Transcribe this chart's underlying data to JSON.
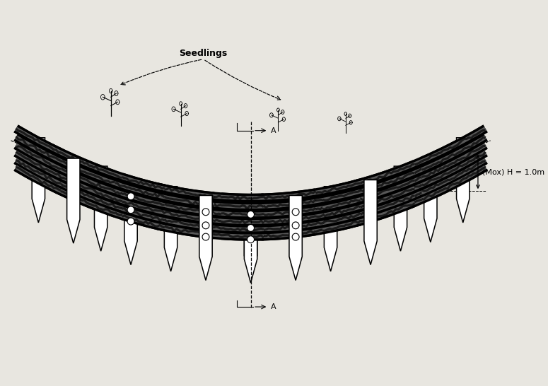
{
  "background_color": "#e8e6e0",
  "fig_width": 7.75,
  "fig_height": 5.46,
  "dpi": 100,
  "text_seedlings": "Seedlings",
  "text_mox": "(Mox) H = 1.0m"
}
